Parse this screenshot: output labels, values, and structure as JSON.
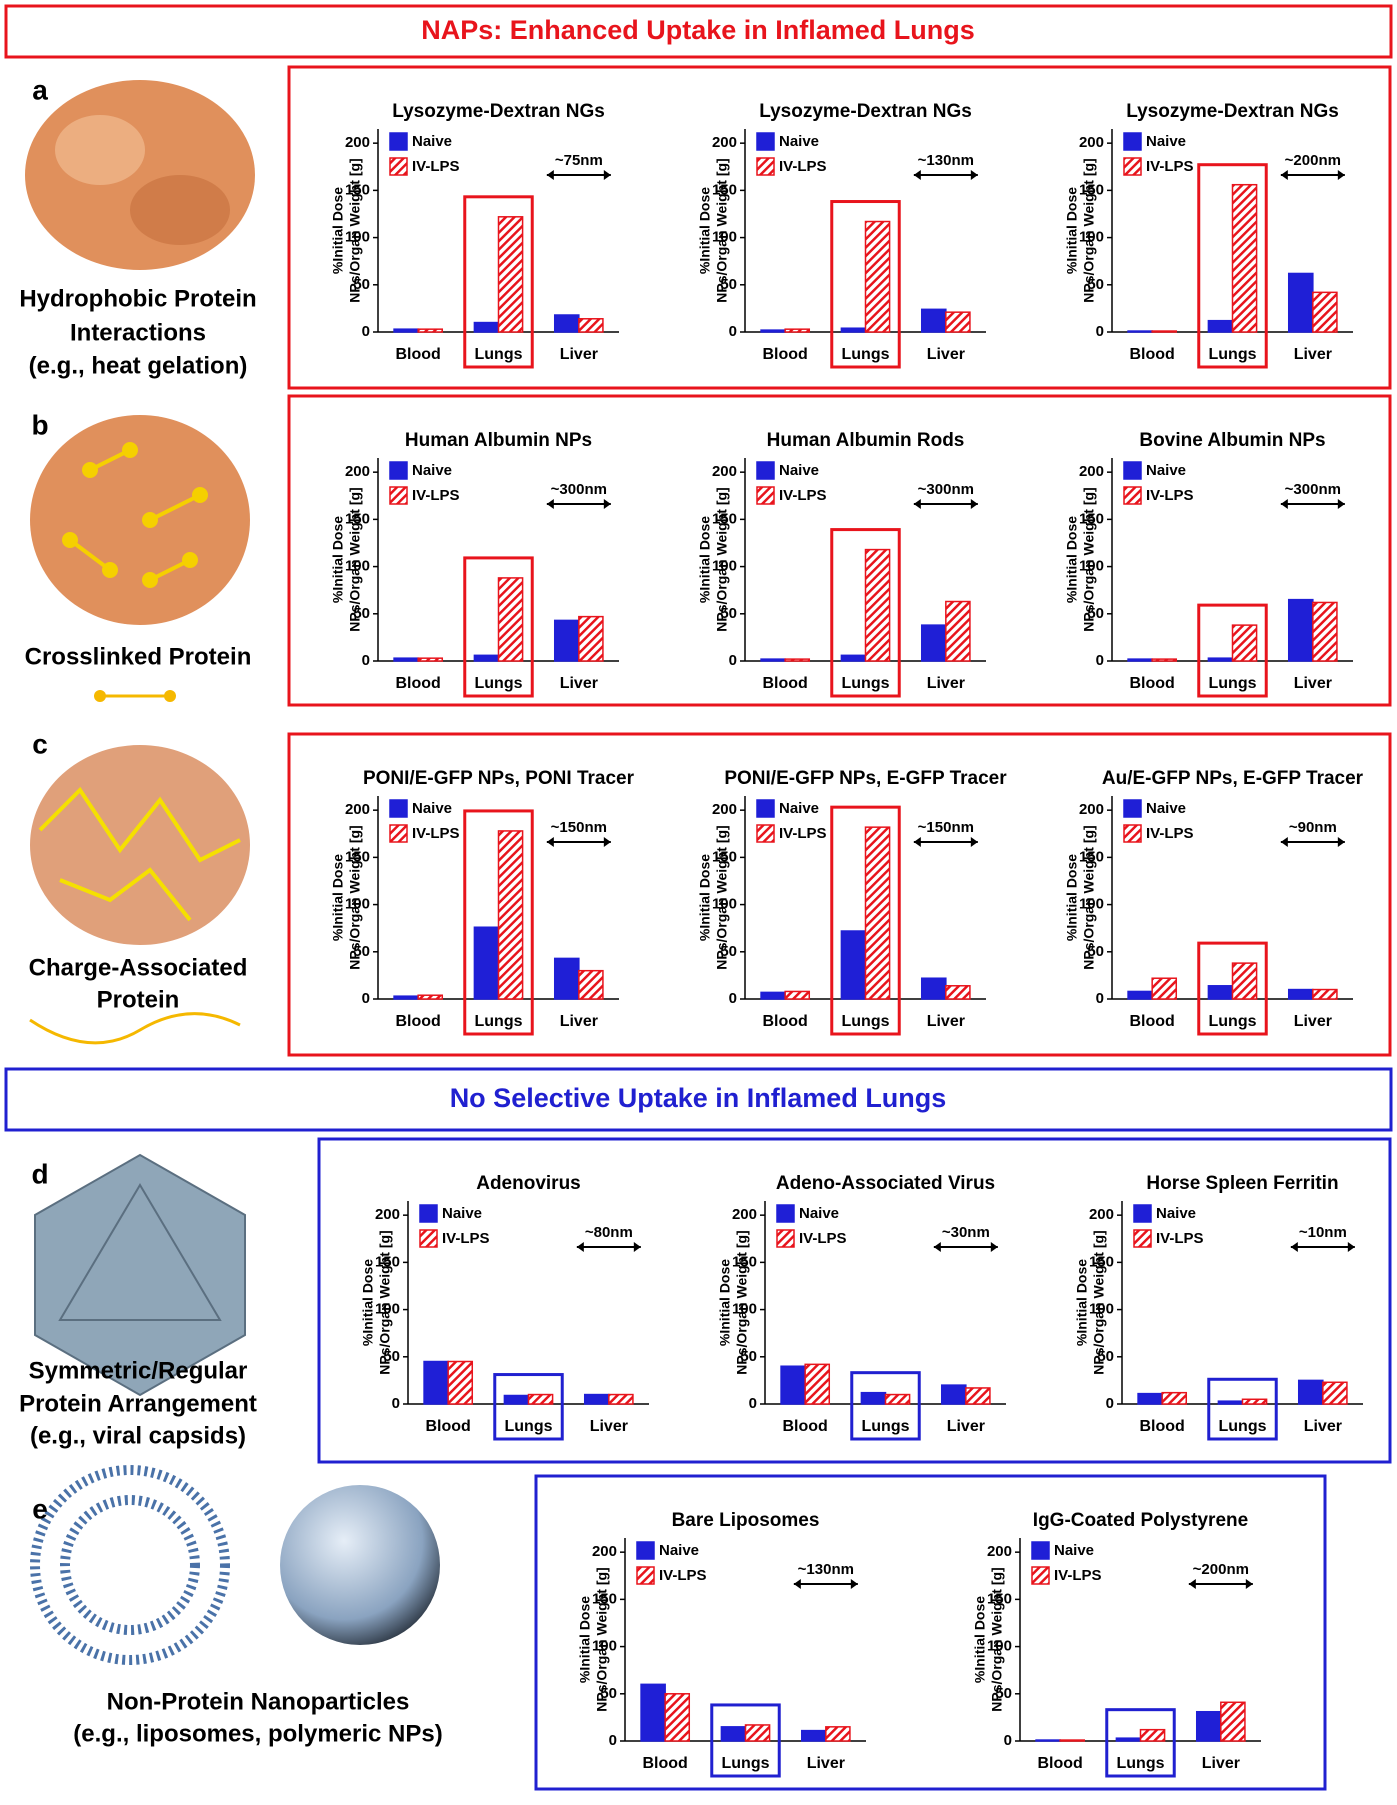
{
  "headers": [
    "NAPs: Enhanced Uptake in Inflamed Lungs",
    "No Selective Uptake in Inflamed Lungs"
  ],
  "panels": [
    {
      "label": "a",
      "caption": [
        "Hydrophobic Protein",
        "Interactions",
        "(e.g., heat gelation)"
      ]
    },
    {
      "label": "b",
      "caption": [
        "Crosslinked Protein"
      ]
    },
    {
      "label": "c",
      "caption": [
        "Charge-Associated",
        "Protein"
      ]
    },
    {
      "label": "d",
      "caption": [
        "Symmetric/Regular",
        "Protein Arrangement",
        "(e.g., viral capsids)"
      ]
    },
    {
      "label": "e",
      "caption": [
        "Non-Protein Nanoparticles",
        "(e.g., liposomes, polymeric NPs)"
      ]
    }
  ],
  "chart_data": [
    {
      "type": "bar",
      "title": "Lysozyme-Dextran NGs",
      "annotation": "~75nm",
      "ylabel": [
        "%Initial Dose",
        "NPs/Organ Weight [g]"
      ],
      "categories": [
        "Blood",
        "Lungs",
        "Liver"
      ],
      "ylim": [
        0,
        215
      ],
      "yticks": [
        0,
        50,
        100,
        150,
        200
      ],
      "highlight_color": "#e8141c",
      "series": [
        {
          "name": "Naive",
          "color": "#1f1fd6",
          "values": [
            3,
            10,
            18
          ]
        },
        {
          "name": "IV-LPS",
          "color": "#e8141c",
          "values": [
            3,
            122,
            14
          ]
        }
      ]
    },
    {
      "type": "bar",
      "title": "Lysozyme-Dextran NGs",
      "annotation": "~130nm",
      "ylabel": [
        "%Initial Dose",
        "NPs/Organ Weight [g]"
      ],
      "categories": [
        "Blood",
        "Lungs",
        "Liver"
      ],
      "ylim": [
        0,
        215
      ],
      "yticks": [
        0,
        50,
        100,
        150,
        200
      ],
      "highlight_color": "#e8141c",
      "series": [
        {
          "name": "Naive",
          "color": "#1f1fd6",
          "values": [
            2,
            4,
            24
          ]
        },
        {
          "name": "IV-LPS",
          "color": "#e8141c",
          "values": [
            3,
            117,
            21
          ]
        }
      ]
    },
    {
      "type": "bar",
      "title": "Lysozyme-Dextran NGs",
      "annotation": "~200nm",
      "ylabel": [
        "%Initial Dose",
        "NPs/Organ Weight [g]"
      ],
      "categories": [
        "Blood",
        "Lungs",
        "Liver"
      ],
      "ylim": [
        0,
        215
      ],
      "yticks": [
        0,
        50,
        100,
        150,
        200
      ],
      "highlight_color": "#e8141c",
      "series": [
        {
          "name": "Naive",
          "color": "#1f1fd6",
          "values": [
            1,
            12,
            62
          ]
        },
        {
          "name": "IV-LPS",
          "color": "#e8141c",
          "values": [
            1,
            156,
            42
          ]
        }
      ]
    },
    {
      "type": "bar",
      "title": "Human Albumin NPs",
      "annotation": "~300nm",
      "ylabel": [
        "%Initial Dose",
        "NPs/Organ Weight [g]"
      ],
      "categories": [
        "Blood",
        "Lungs",
        "Liver"
      ],
      "ylim": [
        0,
        215
      ],
      "yticks": [
        0,
        50,
        100,
        150,
        200
      ],
      "highlight_color": "#e8141c",
      "series": [
        {
          "name": "Naive",
          "color": "#1f1fd6",
          "values": [
            3,
            6,
            43
          ]
        },
        {
          "name": "IV-LPS",
          "color": "#e8141c",
          "values": [
            3,
            88,
            47
          ]
        }
      ]
    },
    {
      "type": "bar",
      "title": "Human Albumin Rods",
      "annotation": "~300nm",
      "ylabel": [
        "%Initial Dose",
        "NPs/Organ Weight [g]"
      ],
      "categories": [
        "Blood",
        "Lungs",
        "Liver"
      ],
      "ylim": [
        0,
        215
      ],
      "yticks": [
        0,
        50,
        100,
        150,
        200
      ],
      "highlight_color": "#e8141c",
      "series": [
        {
          "name": "Naive",
          "color": "#1f1fd6",
          "values": [
            2,
            6,
            38
          ]
        },
        {
          "name": "IV-LPS",
          "color": "#e8141c",
          "values": [
            2,
            118,
            63
          ]
        }
      ]
    },
    {
      "type": "bar",
      "title": "Bovine Albumin NPs",
      "annotation": "~300nm",
      "ylabel": [
        "%Initial Dose",
        "NPs/Organ Weight [g]"
      ],
      "categories": [
        "Blood",
        "Lungs",
        "Liver"
      ],
      "ylim": [
        0,
        215
      ],
      "yticks": [
        0,
        50,
        100,
        150,
        200
      ],
      "highlight_color": "#e8141c",
      "series": [
        {
          "name": "Naive",
          "color": "#1f1fd6",
          "values": [
            2,
            3,
            65
          ]
        },
        {
          "name": "IV-LPS",
          "color": "#e8141c",
          "values": [
            2,
            38,
            62
          ]
        }
      ]
    },
    {
      "type": "bar",
      "title": "PONI/E-GFP NPs, PONI Tracer",
      "annotation": "~150nm",
      "ylabel": [
        "%Initial Dose",
        "NPs/Organ Weight [g]"
      ],
      "categories": [
        "Blood",
        "Lungs",
        "Liver"
      ],
      "ylim": [
        0,
        215
      ],
      "yticks": [
        0,
        50,
        100,
        150,
        200
      ],
      "highlight_color": "#e8141c",
      "series": [
        {
          "name": "Naive",
          "color": "#1f1fd6",
          "values": [
            3,
            76,
            43
          ]
        },
        {
          "name": "IV-LPS",
          "color": "#e8141c",
          "values": [
            4,
            178,
            30
          ]
        }
      ]
    },
    {
      "type": "bar",
      "title": "PONI/E-GFP NPs, E-GFP Tracer",
      "annotation": "~150nm",
      "ylabel": [
        "%Initial Dose",
        "NPs/Organ Weight [g]"
      ],
      "categories": [
        "Blood",
        "Lungs",
        "Liver"
      ],
      "ylim": [
        0,
        215
      ],
      "yticks": [
        0,
        50,
        100,
        150,
        200
      ],
      "highlight_color": "#e8141c",
      "series": [
        {
          "name": "Naive",
          "color": "#1f1fd6",
          "values": [
            7,
            72,
            22
          ]
        },
        {
          "name": "IV-LPS",
          "color": "#e8141c",
          "values": [
            8,
            182,
            14
          ]
        }
      ]
    },
    {
      "type": "bar",
      "title": "Au/E-GFP NPs, E-GFP Tracer",
      "annotation": "~90nm",
      "ylabel": [
        "%Initial Dose",
        "NPs/Organ Weight [g]"
      ],
      "categories": [
        "Blood",
        "Lungs",
        "Liver"
      ],
      "ylim": [
        0,
        215
      ],
      "yticks": [
        0,
        50,
        100,
        150,
        200
      ],
      "highlight_color": "#e8141c",
      "series": [
        {
          "name": "Naive",
          "color": "#1f1fd6",
          "values": [
            8,
            14,
            10
          ]
        },
        {
          "name": "IV-LPS",
          "color": "#e8141c",
          "values": [
            22,
            38,
            10
          ]
        }
      ]
    },
    {
      "type": "bar",
      "title": "Adenovirus",
      "annotation": "~80nm",
      "ylabel": [
        "%Initial Dose",
        "NPs/Organ Weight [g]"
      ],
      "categories": [
        "Blood",
        "Lungs",
        "Liver"
      ],
      "ylim": [
        0,
        215
      ],
      "yticks": [
        0,
        50,
        100,
        150,
        200
      ],
      "highlight_color": "#2020d0",
      "series": [
        {
          "name": "Naive",
          "color": "#1f1fd6",
          "values": [
            45,
            9,
            10
          ]
        },
        {
          "name": "IV-LPS",
          "color": "#e8141c",
          "values": [
            45,
            10,
            10
          ]
        }
      ]
    },
    {
      "type": "bar",
      "title": "Adeno-Associated Virus",
      "annotation": "~30nm",
      "ylabel": [
        "%Initial Dose",
        "NPs/Organ Weight [g]"
      ],
      "categories": [
        "Blood",
        "Lungs",
        "Liver"
      ],
      "ylim": [
        0,
        215
      ],
      "yticks": [
        0,
        50,
        100,
        150,
        200
      ],
      "highlight_color": "#2020d0",
      "series": [
        {
          "name": "Naive",
          "color": "#1f1fd6",
          "values": [
            40,
            12,
            20
          ]
        },
        {
          "name": "IV-LPS",
          "color": "#e8141c",
          "values": [
            42,
            10,
            17
          ]
        }
      ]
    },
    {
      "type": "bar",
      "title": "Horse Spleen Ferritin",
      "annotation": "~10nm",
      "ylabel": [
        "%Initial Dose",
        "NPs/Organ Weight [g]"
      ],
      "categories": [
        "Blood",
        "Lungs",
        "Liver"
      ],
      "ylim": [
        0,
        215
      ],
      "yticks": [
        0,
        50,
        100,
        150,
        200
      ],
      "highlight_color": "#2020d0",
      "series": [
        {
          "name": "Naive",
          "color": "#1f1fd6",
          "values": [
            11,
            3,
            25
          ]
        },
        {
          "name": "IV-LPS",
          "color": "#e8141c",
          "values": [
            12,
            5,
            23
          ]
        }
      ]
    },
    {
      "type": "bar",
      "title": "Bare Liposomes",
      "annotation": "~130nm",
      "ylabel": [
        "%Initial Dose",
        "NPs/Organ Weight [g]"
      ],
      "categories": [
        "Blood",
        "Lungs",
        "Liver"
      ],
      "ylim": [
        0,
        215
      ],
      "yticks": [
        0,
        50,
        100,
        150,
        200
      ],
      "highlight_color": "#2020d0",
      "series": [
        {
          "name": "Naive",
          "color": "#1f1fd6",
          "values": [
            60,
            15,
            11
          ]
        },
        {
          "name": "IV-LPS",
          "color": "#e8141c",
          "values": [
            50,
            17,
            15
          ]
        }
      ]
    },
    {
      "type": "bar",
      "title": "IgG-Coated Polystyrene",
      "annotation": "~200nm",
      "ylabel": [
        "%Initial Dose",
        "NPs/Organ Weight [g]"
      ],
      "categories": [
        "Blood",
        "Lungs",
        "Liver"
      ],
      "ylim": [
        0,
        215
      ],
      "yticks": [
        0,
        50,
        100,
        150,
        200
      ],
      "highlight_color": "#2020d0",
      "series": [
        {
          "name": "Naive",
          "color": "#1f1fd6",
          "values": [
            1,
            3,
            31
          ]
        },
        {
          "name": "IV-LPS",
          "color": "#e8141c",
          "values": [
            1,
            12,
            41
          ]
        }
      ]
    }
  ]
}
